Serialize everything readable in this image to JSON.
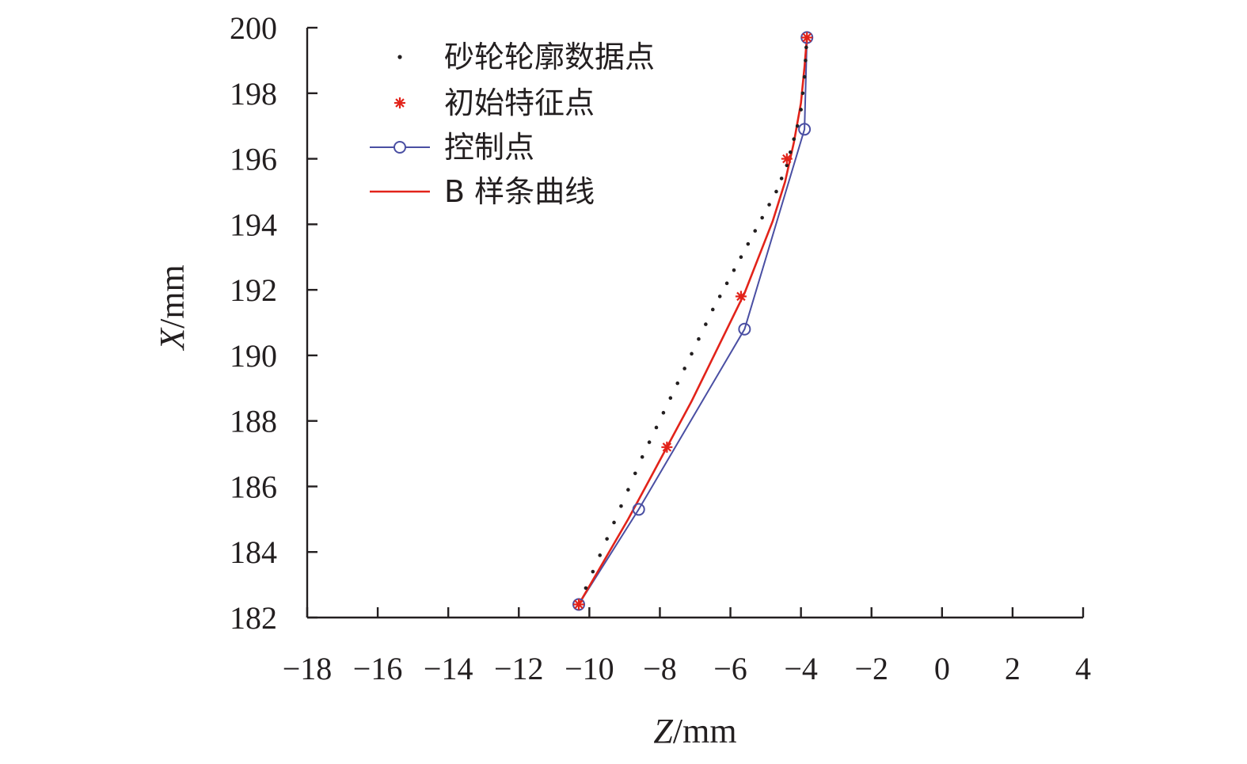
{
  "chart_data": {
    "type": "line",
    "xlabel": {
      "var": "Z",
      "unit": "/mm"
    },
    "ylabel": {
      "var": "X",
      "unit": "/mm"
    },
    "xlim": [
      -18,
      4
    ],
    "ylim": [
      182,
      200
    ],
    "xticks": [
      "−18",
      "−16",
      "−14",
      "−12",
      "−10",
      "−8",
      "−6",
      "−4",
      "−2",
      "0",
      "2",
      "4"
    ],
    "yticks": [
      "182",
      "184",
      "186",
      "188",
      "190",
      "192",
      "194",
      "196",
      "198",
      "200"
    ],
    "grid": false,
    "legend_position": "top-left",
    "series": [
      {
        "name": "砂轮轮廓数据点",
        "kind": "dots",
        "color": "#231f20",
        "points": [
          [
            -10.3,
            182.4
          ],
          [
            -10.1,
            182.9
          ],
          [
            -9.9,
            183.4
          ],
          [
            -9.7,
            183.9
          ],
          [
            -9.5,
            184.4
          ],
          [
            -9.3,
            184.9
          ],
          [
            -9.1,
            185.4
          ],
          [
            -8.9,
            185.9
          ],
          [
            -8.7,
            186.4
          ],
          [
            -8.5,
            186.9
          ],
          [
            -8.3,
            187.35
          ],
          [
            -8.1,
            187.8
          ],
          [
            -7.9,
            188.25
          ],
          [
            -7.7,
            188.7
          ],
          [
            -7.5,
            189.15
          ],
          [
            -7.3,
            189.6
          ],
          [
            -7.1,
            190.05
          ],
          [
            -6.9,
            190.5
          ],
          [
            -6.7,
            190.95
          ],
          [
            -6.5,
            191.4
          ],
          [
            -6.3,
            191.8
          ],
          [
            -6.1,
            192.2
          ],
          [
            -5.9,
            192.6
          ],
          [
            -5.7,
            193.0
          ],
          [
            -5.5,
            193.4
          ],
          [
            -5.3,
            193.8
          ],
          [
            -5.1,
            194.2
          ],
          [
            -4.9,
            194.6
          ],
          [
            -4.7,
            195.0
          ],
          [
            -4.55,
            195.4
          ],
          [
            -4.4,
            195.8
          ],
          [
            -4.3,
            196.2
          ],
          [
            -4.2,
            196.6
          ],
          [
            -4.1,
            197.0
          ],
          [
            -4.0,
            197.5
          ],
          [
            -3.95,
            198.0
          ],
          [
            -3.9,
            198.5
          ],
          [
            -3.87,
            199.0
          ],
          [
            -3.85,
            199.4
          ],
          [
            -3.83,
            199.7
          ]
        ]
      },
      {
        "name": "初始特征点",
        "kind": "star",
        "color": "#e2231a",
        "points": [
          [
            -10.3,
            182.4
          ],
          [
            -7.8,
            187.2
          ],
          [
            -5.7,
            191.8
          ],
          [
            -4.4,
            196.0
          ],
          [
            -3.83,
            199.7
          ]
        ]
      },
      {
        "name": "控制点",
        "kind": "line-circle",
        "color": "#4a4fa3",
        "points": [
          [
            -10.3,
            182.4
          ],
          [
            -8.6,
            185.3
          ],
          [
            -5.6,
            190.8
          ],
          [
            -3.9,
            196.9
          ],
          [
            -3.83,
            199.7
          ]
        ]
      },
      {
        "name": "B 样条曲线",
        "kind": "line",
        "color": "#e2231a",
        "points": [
          [
            -10.3,
            182.4
          ],
          [
            -9.6,
            183.7
          ],
          [
            -8.9,
            185.0
          ],
          [
            -8.3,
            186.2
          ],
          [
            -7.7,
            187.4
          ],
          [
            -7.1,
            188.6
          ],
          [
            -6.6,
            189.7
          ],
          [
            -6.1,
            190.8
          ],
          [
            -5.6,
            191.9
          ],
          [
            -5.2,
            193.0
          ],
          [
            -4.8,
            194.1
          ],
          [
            -4.45,
            195.3
          ],
          [
            -4.2,
            196.5
          ],
          [
            -4.0,
            197.7
          ],
          [
            -3.9,
            198.8
          ],
          [
            -3.83,
            199.7
          ]
        ]
      }
    ]
  }
}
